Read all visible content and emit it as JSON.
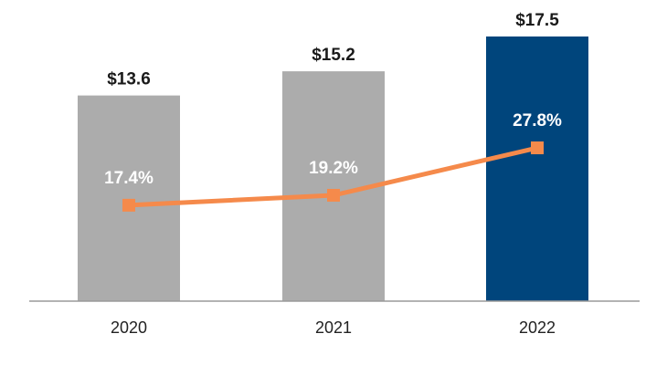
{
  "chart_data": {
    "type": "bar",
    "categories": [
      "2020",
      "2021",
      "2022"
    ],
    "series": [
      {
        "type": "bar",
        "values": [
          13.6,
          15.2,
          17.5
        ],
        "labels": [
          "$13.6",
          "$15.2",
          "$17.5"
        ],
        "colors": [
          "#acacac",
          "#acacac",
          "#00457c"
        ]
      },
      {
        "type": "line",
        "values": [
          17.4,
          19.2,
          27.8
        ],
        "labels": [
          "17.4%",
          "19.2%",
          "27.8%"
        ],
        "color": "#f58a4b"
      }
    ],
    "ylim": [
      0,
      17.5
    ],
    "y2lim": [
      0,
      48
    ],
    "grid": false,
    "legend": "none"
  }
}
